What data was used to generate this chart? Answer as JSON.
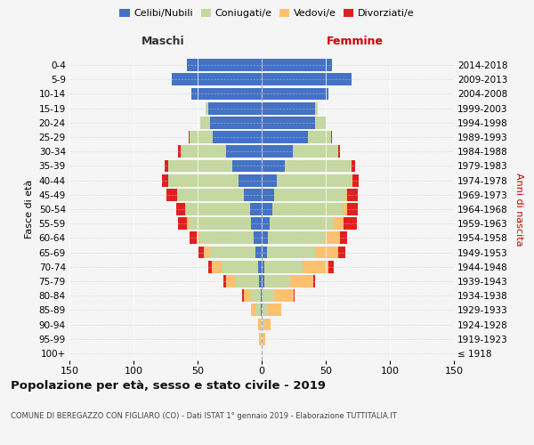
{
  "age_groups": [
    "100+",
    "95-99",
    "90-94",
    "85-89",
    "80-84",
    "75-79",
    "70-74",
    "65-69",
    "60-64",
    "55-59",
    "50-54",
    "45-49",
    "40-44",
    "35-39",
    "30-34",
    "25-29",
    "20-24",
    "15-19",
    "10-14",
    "5-9",
    "0-4"
  ],
  "birth_years": [
    "≤ 1918",
    "1919-1923",
    "1924-1928",
    "1929-1933",
    "1934-1938",
    "1939-1943",
    "1944-1948",
    "1949-1953",
    "1954-1958",
    "1959-1963",
    "1964-1968",
    "1969-1973",
    "1974-1978",
    "1979-1983",
    "1984-1988",
    "1989-1993",
    "1994-1998",
    "1999-2003",
    "2004-2008",
    "2009-2013",
    "2014-2018"
  ],
  "maschi": {
    "celibi": [
      0,
      0,
      0,
      1,
      1,
      2,
      3,
      5,
      6,
      8,
      9,
      14,
      18,
      23,
      28,
      38,
      40,
      42,
      55,
      70,
      58
    ],
    "coniugati": [
      0,
      1,
      1,
      4,
      8,
      18,
      28,
      35,
      42,
      48,
      50,
      52,
      55,
      50,
      35,
      18,
      8,
      2,
      0,
      0,
      0
    ],
    "vedovi": [
      0,
      1,
      2,
      3,
      5,
      8,
      8,
      5,
      3,
      2,
      1,
      0,
      0,
      0,
      0,
      0,
      0,
      0,
      0,
      0,
      0
    ],
    "divorziati": [
      0,
      0,
      0,
      0,
      1,
      2,
      3,
      4,
      5,
      7,
      7,
      8,
      5,
      3,
      2,
      1,
      0,
      0,
      0,
      0,
      0
    ]
  },
  "femmine": {
    "nubili": [
      0,
      0,
      0,
      0,
      1,
      2,
      2,
      4,
      5,
      6,
      8,
      10,
      12,
      18,
      24,
      36,
      42,
      42,
      52,
      70,
      55
    ],
    "coniugate": [
      0,
      1,
      2,
      5,
      9,
      20,
      30,
      38,
      44,
      50,
      55,
      55,
      58,
      52,
      36,
      18,
      8,
      2,
      0,
      0,
      0
    ],
    "vedove": [
      1,
      2,
      5,
      10,
      15,
      18,
      20,
      18,
      12,
      8,
      4,
      2,
      1,
      0,
      0,
      0,
      0,
      0,
      0,
      0,
      0
    ],
    "divorziate": [
      0,
      0,
      0,
      0,
      1,
      2,
      4,
      5,
      6,
      10,
      8,
      8,
      5,
      3,
      1,
      1,
      0,
      0,
      0,
      0,
      0
    ]
  },
  "colors": {
    "celibi": "#4472c4",
    "coniugati": "#c5d8a0",
    "vedovi": "#ffc06e",
    "divorziati": "#e02020"
  },
  "xlim": 150,
  "title": "Popolazione per età, sesso e stato civile - 2019",
  "subtitle": "COMUNE DI BEREGAZZO CON FIGLIARO (CO) - Dati ISTAT 1° gennaio 2019 - Elaborazione TUTTITALIA.IT",
  "xlabel_left": "Maschi",
  "xlabel_right": "Femmine",
  "ylabel_left": "Fasce di età",
  "ylabel_right": "Anni di nascita",
  "bg_color": "#f5f5f5",
  "bar_height": 0.85
}
